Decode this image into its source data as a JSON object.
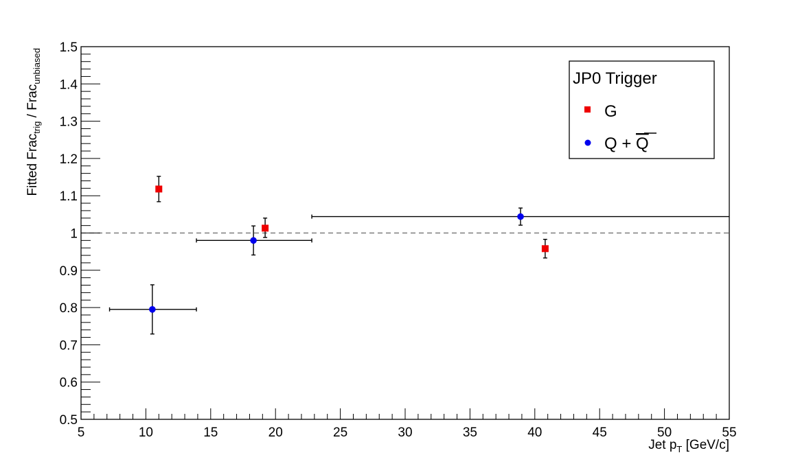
{
  "chart_data": {
    "type": "scatter",
    "xlabel": {
      "main": "Jet p",
      "sub": "T",
      "rest": " [GeV/c]"
    },
    "ylabel": {
      "a": "Fitted Frac",
      "a_sub": "trig",
      "b": " / Frac",
      "b_sub": "unbiased"
    },
    "xlim": [
      5,
      55
    ],
    "ylim": [
      0.5,
      1.5
    ],
    "x_ticks": [
      5,
      10,
      15,
      20,
      25,
      30,
      35,
      40,
      45,
      50,
      55
    ],
    "x_tick_labels": [
      "5",
      "10",
      "15",
      "20",
      "25",
      "30",
      "35",
      "40",
      "45",
      "50",
      "55"
    ],
    "y_ticks": [
      0.5,
      0.6,
      0.7,
      0.8,
      0.9,
      1.0,
      1.1,
      1.2,
      1.3,
      1.4,
      1.5
    ],
    "y_tick_labels": [
      "0.5",
      "0.6",
      "0.7",
      "0.8",
      "0.9",
      "1",
      "1.1",
      "1.2",
      "1.3",
      "1.4",
      "1.5"
    ],
    "reference_line": {
      "y": 1.0,
      "style": "dashed"
    },
    "legend": {
      "title": "JP0 Trigger",
      "placement": "top-right",
      "entries": [
        {
          "label": "G",
          "series": 0
        },
        {
          "label_main": "Q + ",
          "label_bar": "Q",
          "series": 1
        }
      ]
    },
    "series": [
      {
        "marker": "square",
        "color": "#ee0000",
        "points": [
          {
            "x": 11.0,
            "y": 1.118,
            "x_lo": 11.0,
            "x_hi": 11.0,
            "y_lo": 1.084,
            "y_hi": 1.152
          },
          {
            "x": 19.2,
            "y": 1.013,
            "x_lo": 19.2,
            "x_hi": 19.2,
            "y_lo": 0.988,
            "y_hi": 1.04
          },
          {
            "x": 40.8,
            "y": 0.958,
            "x_lo": 40.8,
            "x_hi": 40.8,
            "y_lo": 0.933,
            "y_hi": 0.983
          }
        ]
      },
      {
        "marker": "circle",
        "color": "#0000ee",
        "points": [
          {
            "x": 10.5,
            "y": 0.795,
            "x_lo": 7.2,
            "x_hi": 13.9,
            "y_lo": 0.729,
            "y_hi": 0.861
          },
          {
            "x": 18.3,
            "y": 0.98,
            "x_lo": 13.9,
            "x_hi": 22.8,
            "y_lo": 0.941,
            "y_hi": 1.019
          },
          {
            "x": 38.9,
            "y": 1.044,
            "x_lo": 22.8,
            "x_hi": 55.0,
            "y_lo": 1.021,
            "y_hi": 1.067
          }
        ]
      }
    ]
  }
}
